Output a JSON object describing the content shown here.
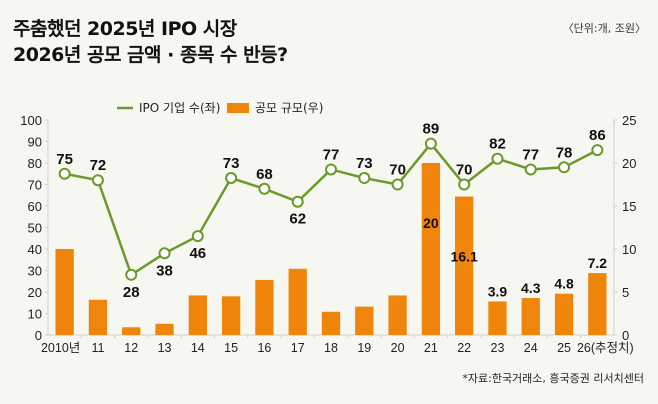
{
  "header": {
    "title_line1": "주춤했던 2025년 IPO 시장",
    "title_line2": "2026년 공모 금액 · 종목 수 반등?",
    "unit": "〈단위:개, 조원〉"
  },
  "footer": {
    "source": "*자료:한국거래소, 흥국증권 리서치센터"
  },
  "colors": {
    "line": "#6a9a2a",
    "bar": "#f0850c",
    "marker_fill": "#ffffff",
    "background": "#f7f7f2"
  },
  "chart_data": {
    "type": "bar+line",
    "title": "주춤했던 2025년 IPO 시장 2026년 공모 금액 · 종목 수 반등?",
    "categories": [
      "2010년",
      "11",
      "12",
      "13",
      "14",
      "15",
      "16",
      "17",
      "18",
      "19",
      "20",
      "21",
      "22",
      "23",
      "24",
      "25",
      "26(추정치)"
    ],
    "series": [
      {
        "name": "IPO 기업 수(좌)",
        "type": "line",
        "axis": "left",
        "values": [
          75,
          72,
          28,
          38,
          46,
          73,
          68,
          62,
          77,
          73,
          70,
          89,
          70,
          82,
          77,
          78,
          86
        ],
        "labels": [
          "75",
          "72",
          "28",
          "38",
          "46",
          "73",
          "68",
          "62",
          "77",
          "73",
          "70",
          "89",
          "70",
          "82",
          "77",
          "78",
          "86"
        ]
      },
      {
        "name": "공모 규모(우)",
        "type": "bar",
        "axis": "right",
        "values": [
          10,
          4.1,
          0.9,
          1.3,
          4.6,
          4.5,
          6.4,
          7.7,
          2.7,
          3.3,
          4.6,
          20,
          16.1,
          3.9,
          4.3,
          4.8,
          7.2
        ],
        "labels": [
          "",
          "",
          "",
          "",
          "",
          "",
          "",
          "",
          "",
          "",
          "",
          "20",
          "16.1",
          "3.9",
          "4.3",
          "4.8",
          "7.2"
        ]
      }
    ],
    "left_axis": {
      "min": 0,
      "max": 100,
      "ticks": [
        "0",
        "10",
        "20",
        "30",
        "40",
        "50",
        "60",
        "70",
        "80",
        "90",
        "100"
      ]
    },
    "right_axis": {
      "min": 0,
      "max": 25,
      "ticks": [
        "0",
        "5",
        "10",
        "15",
        "20",
        "25"
      ]
    },
    "legend": {
      "position": "top-left",
      "entries": [
        "IPO 기업 수(좌)",
        "공모 규모(우)"
      ]
    },
    "grid": false
  }
}
